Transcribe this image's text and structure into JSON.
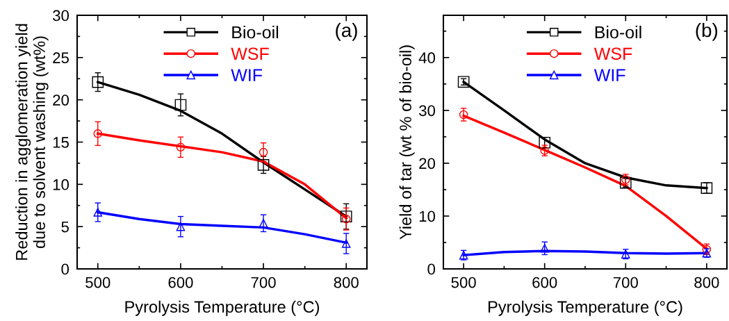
{
  "chart_data": [
    {
      "type": "scatter",
      "xlabel": "Pyrolysis Temperature (°C)",
      "ylabel": "Reduction in agglomeration yield\ndue to solvent washing (wt%)",
      "annotations": [
        "(a)"
      ],
      "legend": "top",
      "xlim": [
        475,
        825
      ],
      "xticks": [
        500,
        600,
        700,
        800
      ],
      "ylim": [
        0,
        30
      ],
      "yticks": [
        0,
        5,
        10,
        15,
        20,
        25,
        30
      ],
      "grid": false,
      "series": [
        {
          "name": "Bio-oil",
          "color": "#000000",
          "marker": "square",
          "x": [
            500,
            600,
            700,
            800
          ],
          "values": [
            22.1,
            19.4,
            12.3,
            6.2
          ],
          "errors": [
            1.1,
            1.3,
            1.0,
            1.5
          ]
        },
        {
          "name": "WSF",
          "color": "#ff0000",
          "marker": "circle",
          "x": [
            500,
            600,
            700,
            800
          ],
          "values": [
            16.0,
            14.4,
            13.8,
            5.9
          ],
          "errors": [
            1.4,
            1.2,
            1.1,
            1.3
          ]
        },
        {
          "name": "WIF",
          "color": "#0000ff",
          "marker": "triangle",
          "x": [
            500,
            600,
            700,
            800
          ],
          "values": [
            6.7,
            5.0,
            5.4,
            3.0
          ],
          "errors": [
            1.1,
            1.2,
            1.0,
            1.2
          ]
        },
        {
          "type": "line",
          "color": "#000000",
          "x": [
            500,
            550,
            600,
            650,
            700,
            750,
            800
          ],
          "values": [
            22.1,
            20.6,
            18.7,
            16.0,
            12.6,
            9.4,
            6.2
          ]
        },
        {
          "type": "line",
          "color": "#ff0000",
          "x": [
            500,
            550,
            600,
            650,
            700,
            750,
            800
          ],
          "values": [
            16.0,
            15.2,
            14.5,
            13.8,
            12.7,
            10.0,
            6.0
          ]
        },
        {
          "type": "line",
          "color": "#0000ff",
          "x": [
            500,
            550,
            600,
            650,
            700,
            750,
            800
          ],
          "values": [
            6.7,
            5.9,
            5.3,
            5.1,
            4.9,
            4.1,
            3.1
          ]
        }
      ]
    },
    {
      "type": "scatter",
      "xlabel": "Pyrolysis Temperature (°C)",
      "ylabel": "Yield of tar (wt % of bio-oil)",
      "annotations": [
        "(b)"
      ],
      "legend": "top",
      "xlim": [
        475,
        825
      ],
      "xticks": [
        500,
        600,
        700,
        800
      ],
      "ylim": [
        0,
        48
      ],
      "yticks": [
        0,
        10,
        20,
        30,
        40
      ],
      "grid": false,
      "series": [
        {
          "name": "Bio-oil",
          "color": "#000000",
          "marker": "square",
          "x": [
            500,
            600,
            700,
            800
          ],
          "values": [
            35.4,
            23.9,
            16.3,
            15.3
          ],
          "errors": [
            0.6,
            1.0,
            0.8,
            1.0
          ]
        },
        {
          "name": "WSF",
          "color": "#ff0000",
          "marker": "circle",
          "x": [
            500,
            600,
            700,
            800
          ],
          "values": [
            29.2,
            22.4,
            16.9,
            3.7
          ],
          "errors": [
            1.2,
            1.0,
            1.0,
            1.0
          ]
        },
        {
          "name": "WIF",
          "color": "#0000ff",
          "marker": "triangle",
          "x": [
            500,
            600,
            700,
            800
          ],
          "values": [
            2.6,
            3.9,
            2.8,
            3.0
          ],
          "errors": [
            0.9,
            1.2,
            0.9,
            0.8
          ]
        },
        {
          "type": "line",
          "color": "#000000",
          "x": [
            500,
            550,
            600,
            650,
            700,
            750,
            800
          ],
          "values": [
            35.4,
            30.0,
            24.5,
            20.0,
            17.3,
            15.8,
            15.3
          ]
        },
        {
          "type": "line",
          "color": "#ff0000",
          "x": [
            500,
            550,
            600,
            650,
            700,
            750,
            800
          ],
          "values": [
            29.0,
            25.8,
            22.5,
            19.2,
            15.7,
            10.0,
            3.8
          ]
        },
        {
          "type": "line",
          "color": "#0000ff",
          "x": [
            500,
            550,
            600,
            650,
            700,
            750,
            800
          ],
          "values": [
            2.6,
            3.2,
            3.4,
            3.3,
            3.0,
            2.9,
            3.0
          ]
        }
      ]
    }
  ]
}
